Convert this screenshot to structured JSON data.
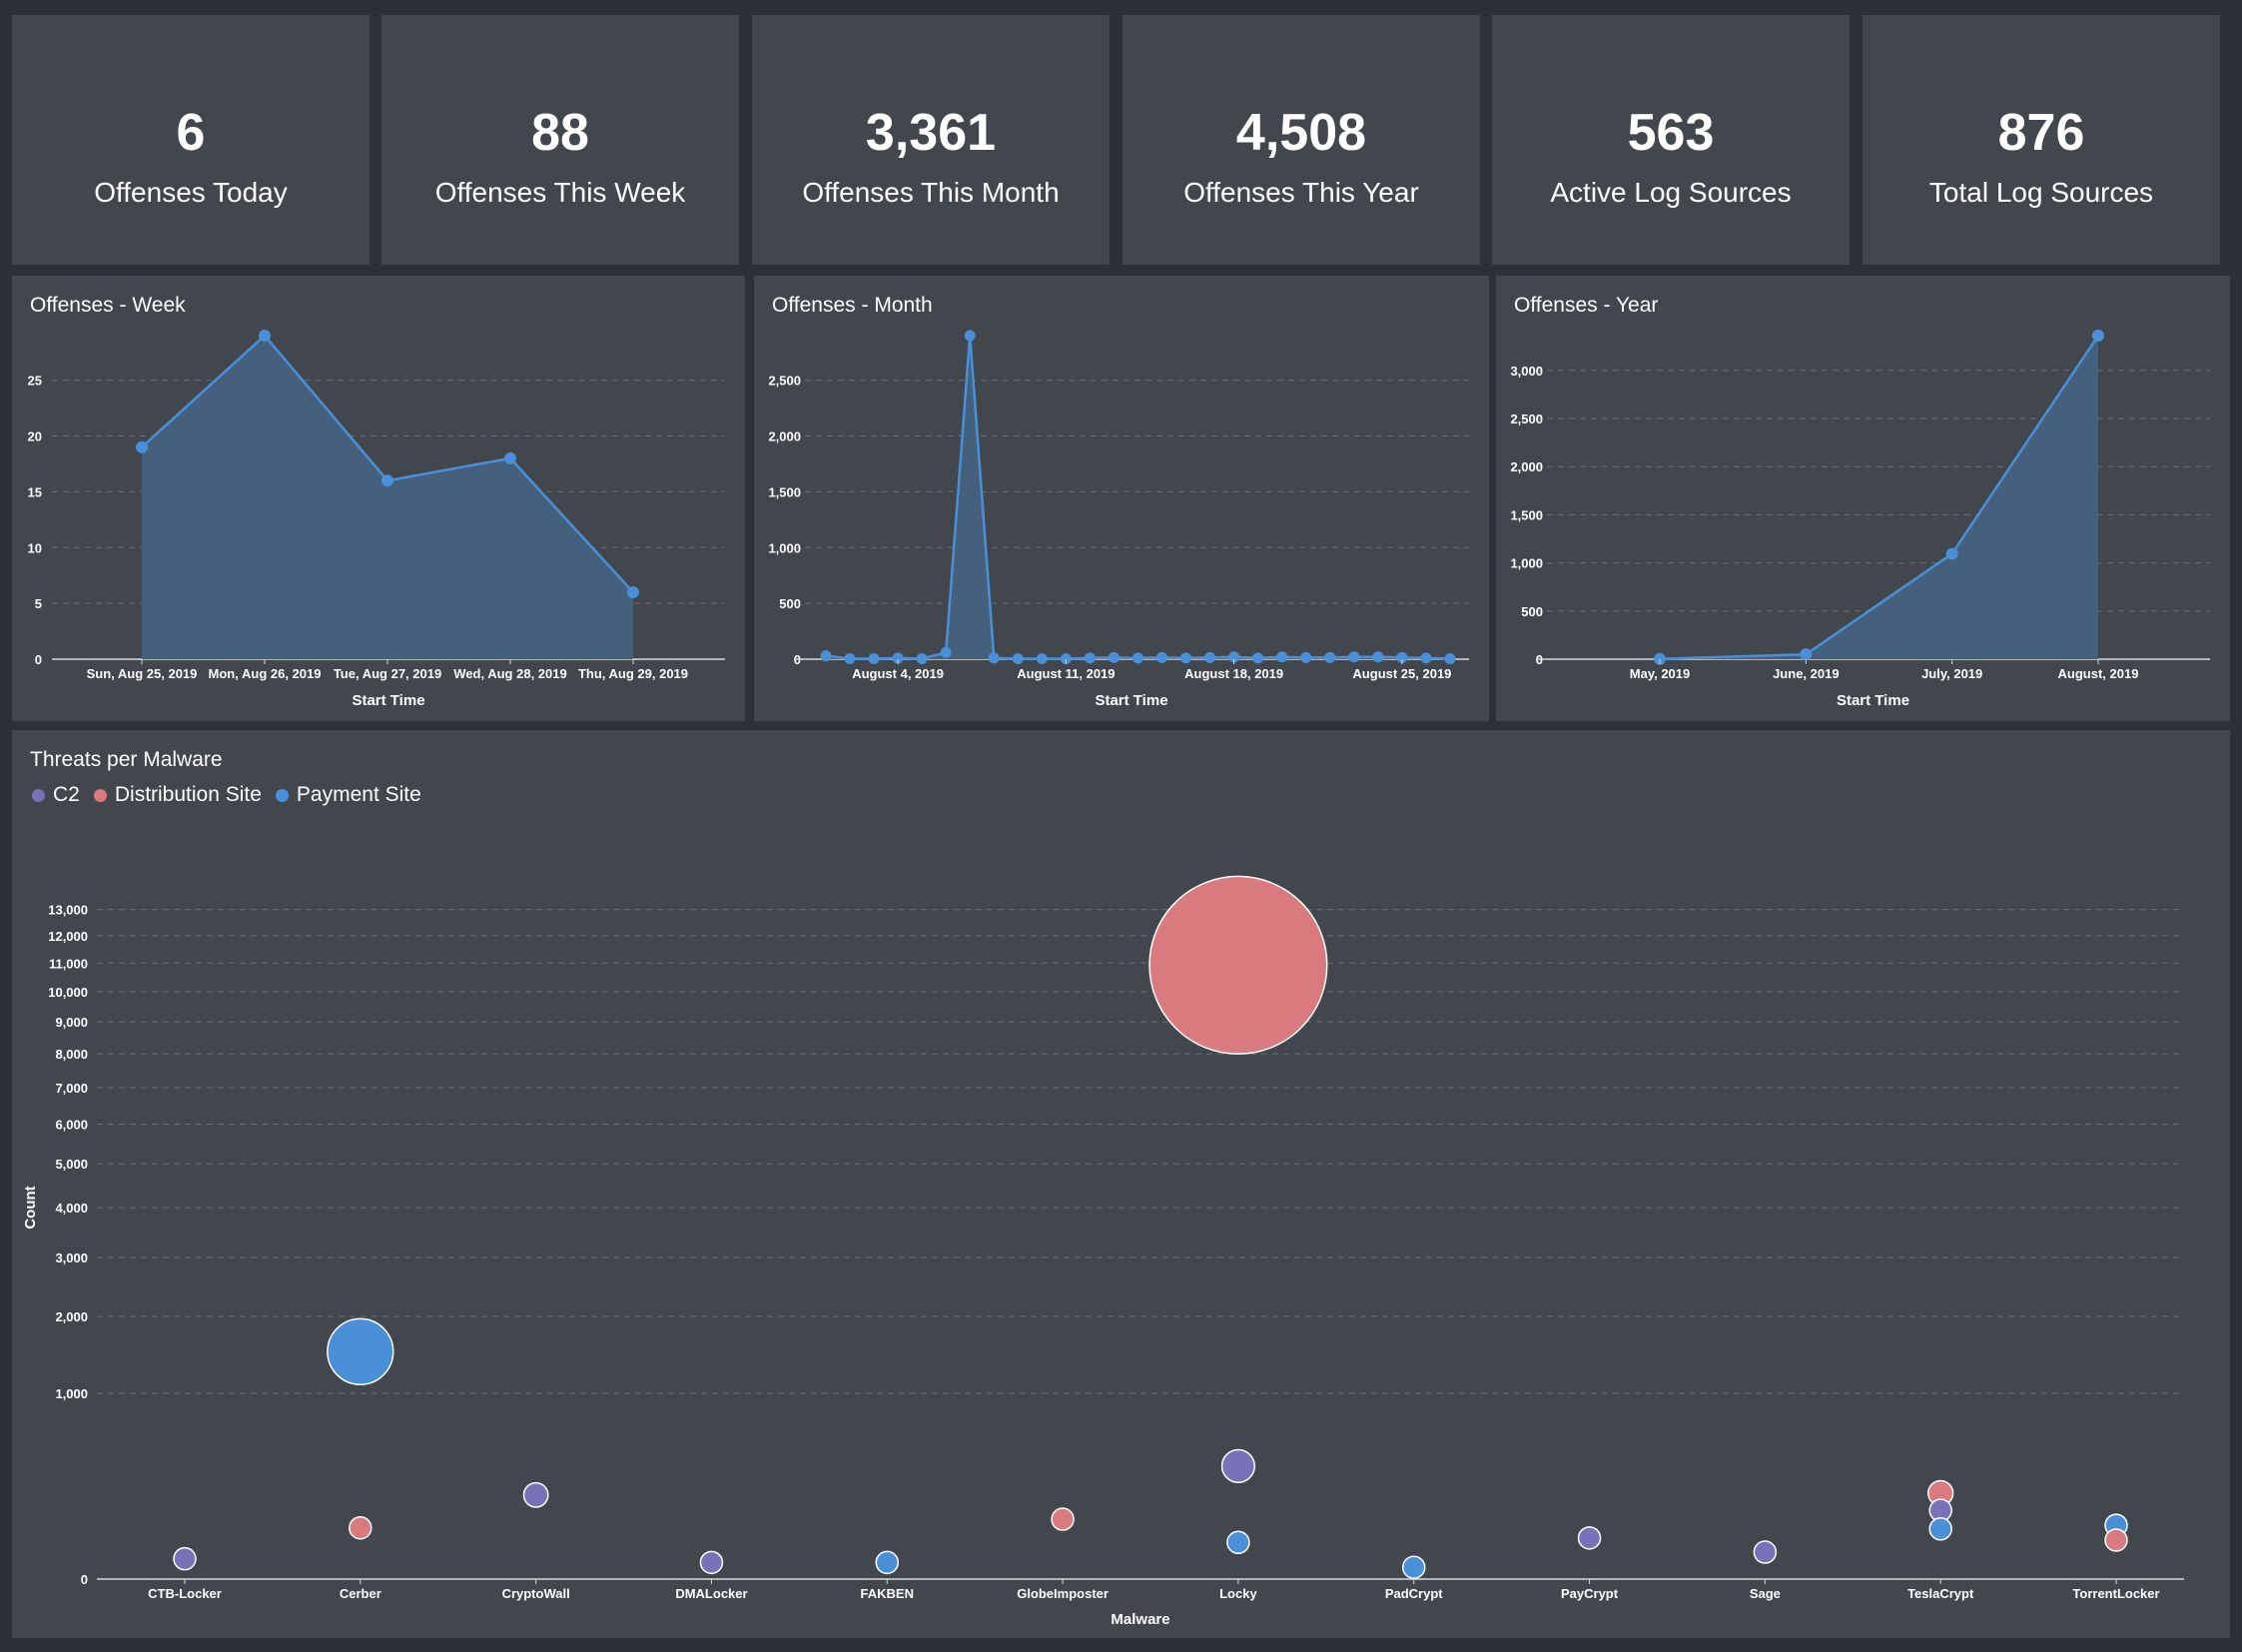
{
  "kpis": [
    {
      "value": "6",
      "label": "Offenses Today"
    },
    {
      "value": "88",
      "label": "Offenses This Week"
    },
    {
      "value": "3,361",
      "label": "Offenses This Month"
    },
    {
      "value": "4,508",
      "label": "Offenses This Year"
    },
    {
      "value": "563",
      "label": "Active Log Sources"
    },
    {
      "value": "876",
      "label": "Total Log Sources"
    }
  ],
  "colors": {
    "page_bg": "#2d3137",
    "panel_bg": "#42474e",
    "line": "#4a90d9",
    "area": "#44607c",
    "c2": "#7a72b9",
    "distribution": "#d97b7e",
    "payment": "#4a90d9"
  },
  "chart_data": [
    {
      "type": "area",
      "title": "Offenses - Week",
      "xlabel": "Start Time",
      "categories": [
        "Sun, Aug 25, 2019",
        "Mon, Aug 26, 2019",
        "Tue, Aug 27, 2019",
        "Wed, Aug 28, 2019",
        "Thu, Aug 29, 2019"
      ],
      "values": [
        19,
        29,
        16,
        18,
        6
      ],
      "ylim": [
        0,
        29
      ],
      "yticks": [
        "0",
        "5",
        "10",
        "15",
        "20",
        "25"
      ],
      "ytick_values": [
        0,
        5,
        10,
        15,
        20,
        25
      ],
      "grid": true
    },
    {
      "type": "area",
      "title": "Offenses - Month",
      "xlabel": "Start Time",
      "values": [
        30,
        5,
        5,
        10,
        5,
        60,
        2900,
        10,
        5,
        5,
        5,
        10,
        15,
        10,
        15,
        10,
        15,
        20,
        10,
        20,
        15,
        15,
        20,
        20,
        15,
        10,
        5
      ],
      "ylim": [
        0,
        2900
      ],
      "yticks": [
        "0",
        "500",
        "1,000",
        "1,500",
        "2,000",
        "2,500"
      ],
      "ytick_values": [
        0,
        500,
        1000,
        1500,
        2000,
        2500
      ],
      "xtick_labels": [
        {
          "label": "August 4, 2019",
          "index": 3
        },
        {
          "label": "August 11, 2019",
          "index": 10
        },
        {
          "label": "August 18, 2019",
          "index": 17
        },
        {
          "label": "August 25, 2019",
          "index": 24
        }
      ],
      "grid": true
    },
    {
      "type": "area",
      "title": "Offenses - Year",
      "xlabel": "Start Time",
      "categories": [
        "May, 2019",
        "June, 2019",
        "July, 2019",
        "August, 2019"
      ],
      "values": [
        2,
        50,
        1095,
        3361
      ],
      "ylim": [
        0,
        3361
      ],
      "yticks": [
        "0",
        "500",
        "1,000",
        "1,500",
        "2,000",
        "2,500",
        "3,000"
      ],
      "ytick_values": [
        0,
        500,
        1000,
        1500,
        2000,
        2500,
        3000
      ],
      "grid": true
    },
    {
      "type": "scatter",
      "title": "Threats per Malware",
      "xlabel": "Malware",
      "ylabel": "Count",
      "scale": "sqrt",
      "legend_position": "top-left",
      "categories": [
        "CTB-Locker",
        "Cerber",
        "CryptoWall",
        "DMALocker",
        "FAKBEN",
        "GlobeImposter",
        "Locky",
        "PadCrypt",
        "PayCrypt",
        "Sage",
        "TeslaCrypt",
        "TorrentLocker"
      ],
      "yticks": [
        "0",
        "1,000",
        "2,000",
        "3,000",
        "4,000",
        "5,000",
        "6,000",
        "7,000",
        "8,000",
        "9,000",
        "10,000",
        "11,000",
        "12,000",
        "13,000"
      ],
      "ytick_values": [
        0,
        1000,
        2000,
        3000,
        4000,
        5000,
        6000,
        7000,
        8000,
        9000,
        10000,
        11000,
        12000,
        13000
      ],
      "series": [
        {
          "name": "C2",
          "color": "#7a72b9",
          "points": [
            {
              "x": "CTB-Locker",
              "y": 12
            },
            {
              "x": "CryptoWall",
              "y": 205
            },
            {
              "x": "DMALocker",
              "y": 8
            },
            {
              "x": "Locky",
              "y": 370
            },
            {
              "x": "PayCrypt",
              "y": 49
            },
            {
              "x": "Sage",
              "y": 21
            },
            {
              "x": "TeslaCrypt",
              "y": 137
            }
          ]
        },
        {
          "name": "Distribution Site",
          "color": "#d97b7e",
          "points": [
            {
              "x": "Cerber",
              "y": 76
            },
            {
              "x": "GlobeImposter",
              "y": 104
            },
            {
              "x": "Locky",
              "y": 10930
            },
            {
              "x": "TeslaCrypt",
              "y": 214
            },
            {
              "x": "TorrentLocker",
              "y": 44
            }
          ]
        },
        {
          "name": "Payment Site",
          "color": "#4a90d9",
          "points": [
            {
              "x": "Cerber",
              "y": 1500
            },
            {
              "x": "FAKBEN",
              "y": 8
            },
            {
              "x": "Locky",
              "y": 39
            },
            {
              "x": "PadCrypt",
              "y": 4
            },
            {
              "x": "TeslaCrypt",
              "y": 73
            },
            {
              "x": "TorrentLocker",
              "y": 84
            }
          ]
        }
      ]
    }
  ]
}
